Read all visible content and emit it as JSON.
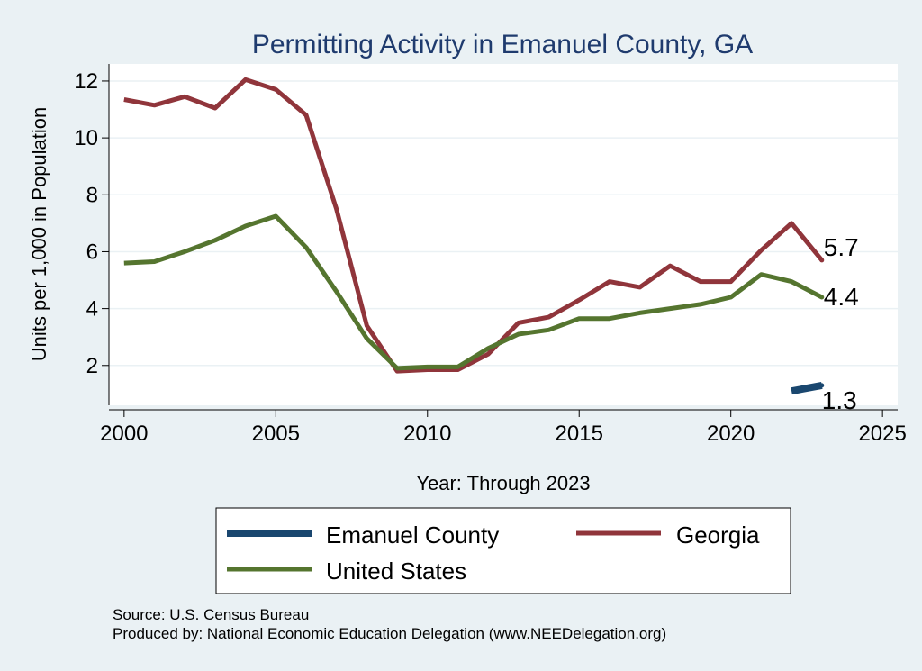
{
  "chart_data": {
    "type": "line",
    "title": "Permitting Activity in Emanuel County, GA",
    "xlabel": "Year: Through 2023",
    "ylabel": "Units per 1,000 in Population",
    "xlim": [
      1999.5,
      2025.5
    ],
    "ylim": [
      0.6,
      12.6
    ],
    "xticks": [
      2000,
      2005,
      2010,
      2015,
      2020,
      2025
    ],
    "yticks": [
      2,
      4,
      6,
      8,
      10,
      12
    ],
    "series": [
      {
        "name": "Emanuel County",
        "color": "#1a476f",
        "x": [
          2022,
          2023
        ],
        "values": [
          1.1,
          1.3
        ],
        "end_label": "1.3"
      },
      {
        "name": "Georgia",
        "color": "#90353b",
        "x": [
          2000,
          2001,
          2002,
          2003,
          2004,
          2005,
          2006,
          2007,
          2008,
          2009,
          2010,
          2011,
          2012,
          2013,
          2014,
          2015,
          2016,
          2017,
          2018,
          2019,
          2020,
          2021,
          2022,
          2023
        ],
        "values": [
          11.35,
          11.15,
          11.45,
          11.05,
          12.05,
          11.7,
          10.8,
          7.5,
          3.4,
          1.8,
          1.85,
          1.85,
          2.4,
          3.5,
          3.7,
          4.3,
          4.95,
          4.75,
          5.5,
          4.95,
          4.95,
          6.05,
          7.0,
          5.7
        ],
        "end_label": "5.7"
      },
      {
        "name": "United States",
        "color": "#55752f",
        "x": [
          2000,
          2001,
          2002,
          2003,
          2004,
          2005,
          2006,
          2007,
          2008,
          2009,
          2010,
          2011,
          2012,
          2013,
          2014,
          2015,
          2016,
          2017,
          2018,
          2019,
          2020,
          2021,
          2022,
          2023
        ],
        "values": [
          5.6,
          5.65,
          6.0,
          6.4,
          6.9,
          7.25,
          6.15,
          4.6,
          2.95,
          1.9,
          1.95,
          1.95,
          2.6,
          3.1,
          3.25,
          3.65,
          3.65,
          3.85,
          4.0,
          4.15,
          4.4,
          5.2,
          4.95,
          4.4
        ],
        "end_label": "4.4"
      }
    ],
    "legend": {
      "position": "bottom",
      "order": [
        "Emanuel County",
        "Georgia",
        "United States"
      ]
    }
  },
  "source_line": "Source: U.S. Census Bureau",
  "produced_line": "Produced by: National Economic Education Delegation (www.NEEDelegation.org)"
}
